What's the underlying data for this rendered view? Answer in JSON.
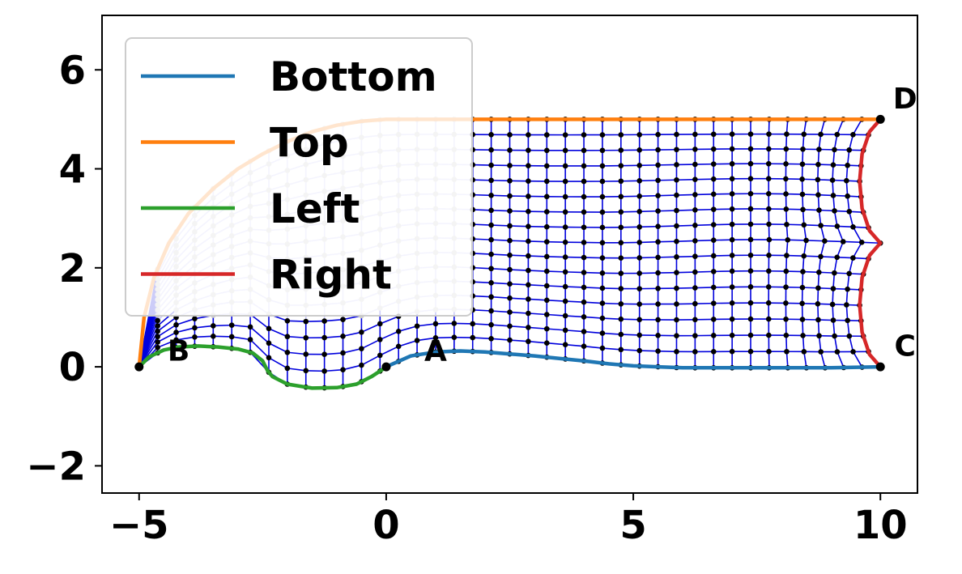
{
  "chart_data": {
    "type": "line",
    "title": "",
    "xlabel": "",
    "ylabel": "",
    "xlim": [
      -5.75,
      10.75
    ],
    "ylim": [
      -2.55,
      7.1
    ],
    "x_ticks": [
      -5,
      0,
      5,
      10
    ],
    "y_ticks": [
      -2,
      0,
      2,
      4,
      6
    ],
    "x_tick_labels": [
      "−5",
      "0",
      "5",
      "10"
    ],
    "y_tick_labels": [
      "−2",
      "0",
      "2",
      "4",
      "6"
    ],
    "grid": false,
    "legend": {
      "placement": "upper-left",
      "entries": [
        {
          "label": "Bottom",
          "color": "#1f77b4"
        },
        {
          "label": "Top",
          "color": "#ff7f0e"
        },
        {
          "label": "Left",
          "color": "#2ca02c"
        },
        {
          "label": "Right",
          "color": "#d62728"
        }
      ]
    },
    "series": [
      {
        "name": "Bottom",
        "color": "#1f77b4",
        "x": [
          0,
          0.5,
          1,
          1.5,
          2,
          2.5,
          3,
          3.5,
          4,
          4.5,
          5,
          5.5,
          6,
          7,
          8,
          9,
          10
        ],
        "y": [
          0,
          0.22,
          0.3,
          0.32,
          0.3,
          0.26,
          0.22,
          0.17,
          0.12,
          0.06,
          0.02,
          0.0,
          -0.02,
          -0.02,
          -0.02,
          -0.02,
          0
        ]
      },
      {
        "name": "Top",
        "color": "#ff7f0e",
        "x": [
          -5,
          -4.9,
          -4.7,
          -4.4,
          -4,
          -3.5,
          -3,
          -2.5,
          -2,
          -1.5,
          -1,
          -0.5,
          0,
          1,
          2,
          3,
          4,
          5,
          6,
          7,
          8,
          9,
          10
        ],
        "y": [
          0,
          1.0,
          1.8,
          2.5,
          3.1,
          3.6,
          4.0,
          4.3,
          4.55,
          4.75,
          4.88,
          4.96,
          5.0,
          5.0,
          5.0,
          5.0,
          5.0,
          5.0,
          5.0,
          5.0,
          5.0,
          5.0,
          5.0
        ]
      },
      {
        "name": "Left",
        "color": "#2ca02c",
        "x": [
          -5,
          -4.8,
          -4.5,
          -4.2,
          -3.8,
          -3.4,
          -3.0,
          -2.7,
          -2.5,
          -2.4,
          -2.3,
          -2.0,
          -1.5,
          -1.0,
          -0.6,
          -0.3,
          -0.1,
          0
        ],
        "y": [
          0,
          0.2,
          0.34,
          0.4,
          0.42,
          0.4,
          0.36,
          0.28,
          0.12,
          -0.08,
          -0.2,
          -0.35,
          -0.43,
          -0.42,
          -0.35,
          -0.2,
          -0.07,
          0
        ]
      },
      {
        "name": "Right",
        "color": "#d62728",
        "x": [
          10,
          9.78,
          9.63,
          9.58,
          9.63,
          9.78,
          10,
          9.78,
          9.63,
          9.58,
          9.63,
          9.78,
          10
        ],
        "y": [
          0,
          0.25,
          0.7,
          1.25,
          1.8,
          2.25,
          2.5,
          2.75,
          3.2,
          3.75,
          4.3,
          4.75,
          5
        ]
      }
    ],
    "annotations": [
      {
        "text": "A",
        "x": 1.0,
        "y": 0.35
      },
      {
        "text": "B",
        "x": -4.2,
        "y": 0.35
      },
      {
        "text": "C",
        "x": 10.5,
        "y": 0.45
      },
      {
        "text": "D",
        "x": 10.5,
        "y": 5.45
      }
    ],
    "corner_points": [
      {
        "x": -5,
        "y": 0
      },
      {
        "x": 0,
        "y": 0
      },
      {
        "x": 10,
        "y": 0
      },
      {
        "x": 10,
        "y": 5
      }
    ],
    "mesh": {
      "nx": 41,
      "ny": 17,
      "line_color": "#0000dd",
      "node_color": "#000000",
      "faded_region": "upper-left behind legend"
    }
  }
}
